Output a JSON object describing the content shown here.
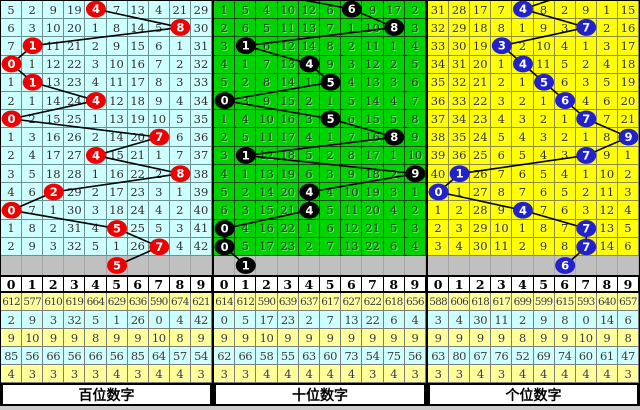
{
  "column_headers": [
    "0",
    "1",
    "2",
    "3",
    "4",
    "5",
    "6",
    "7",
    "8",
    "9"
  ],
  "stat_row_colors": [
    "#FFFF99",
    "#CCFFFF",
    "#FFFF99",
    "#CCFFFF",
    "#FFFF99"
  ],
  "chart_data": {
    "type": "line",
    "title": "3D digit trend chart (miss-count grids with drawn-digit trend lines)",
    "x_axis_digits": [
      "0",
      "1",
      "2",
      "3",
      "4",
      "5",
      "6",
      "7",
      "8",
      "9"
    ],
    "series": [
      {
        "name": "百位数字",
        "drawn_digits_top_to_bottom": [
          4,
          8,
          1,
          0,
          1,
          4,
          0,
          7,
          4,
          8,
          2,
          0,
          5,
          7
        ],
        "pending_digit": 5
      },
      {
        "name": "十位数字",
        "drawn_digits_top_to_bottom": [
          6,
          8,
          1,
          4,
          5,
          0,
          5,
          8,
          1,
          9,
          4,
          4,
          0,
          0
        ],
        "pending_digit": 1
      },
      {
        "name": "个位数字",
        "drawn_digits_top_to_bottom": [
          4,
          7,
          3,
          4,
          5,
          6,
          7,
          9,
          7,
          1,
          0,
          4,
          7,
          7
        ],
        "pending_digit": 6
      }
    ]
  },
  "panels": [
    {
      "id": "hundreds",
      "footer_label": "百位数字",
      "bg_color": "#CCFFFF",
      "grid_line_color": "#6f9090",
      "ball_color": "#EE0000",
      "rows": [
        [
          "5",
          "2",
          "9",
          "19",
          "4",
          "7",
          "13",
          "4",
          "21",
          "29"
        ],
        [
          "6",
          "3",
          "10",
          "20",
          "1",
          "8",
          "14",
          "5",
          "8",
          "30"
        ],
        [
          "7",
          "1",
          "11",
          "21",
          "2",
          "9",
          "15",
          "6",
          "1",
          "31"
        ],
        [
          "0",
          "1",
          "12",
          "22",
          "3",
          "10",
          "16",
          "7",
          "2",
          "32"
        ],
        [
          "1",
          "1",
          "13",
          "23",
          "4",
          "11",
          "17",
          "8",
          "3",
          "33"
        ],
        [
          "2",
          "1",
          "14",
          "24",
          "4",
          "12",
          "18",
          "9",
          "4",
          "34"
        ],
        [
          "0",
          "2",
          "15",
          "25",
          "1",
          "13",
          "19",
          "10",
          "5",
          "35"
        ],
        [
          "1",
          "3",
          "16",
          "26",
          "2",
          "14",
          "20",
          "7",
          "6",
          "36"
        ],
        [
          "2",
          "4",
          "17",
          "27",
          "4",
          "15",
          "21",
          "1",
          "7",
          "37"
        ],
        [
          "3",
          "5",
          "18",
          "28",
          "1",
          "16",
          "22",
          "2",
          "8",
          "38"
        ],
        [
          "4",
          "6",
          "2",
          "29",
          "2",
          "17",
          "23",
          "3",
          "1",
          "39"
        ],
        [
          "0",
          "7",
          "1",
          "30",
          "3",
          "18",
          "24",
          "4",
          "2",
          "40"
        ],
        [
          "1",
          "8",
          "2",
          "31",
          "4",
          "5",
          "25",
          "5",
          "3",
          "41"
        ],
        [
          "2",
          "9",
          "3",
          "32",
          "5",
          "1",
          "26",
          "7",
          "4",
          "42"
        ]
      ],
      "balls": [
        [
          0,
          4
        ],
        [
          1,
          8
        ],
        [
          2,
          1
        ],
        [
          3,
          0
        ],
        [
          4,
          1
        ],
        [
          5,
          4
        ],
        [
          6,
          0
        ],
        [
          7,
          7
        ],
        [
          8,
          4
        ],
        [
          9,
          8
        ],
        [
          10,
          2
        ],
        [
          11,
          0
        ],
        [
          12,
          5
        ],
        [
          13,
          7
        ]
      ],
      "next_ball": {
        "col": 5,
        "label": "5"
      },
      "lead_line": null,
      "stats": [
        [
          "612",
          "577",
          "610",
          "619",
          "664",
          "629",
          "636",
          "590",
          "674",
          "621"
        ],
        [
          "2",
          "9",
          "3",
          "32",
          "5",
          "1",
          "26",
          "0",
          "4",
          "42"
        ],
        [
          "9",
          "10",
          "9",
          "9",
          "8",
          "9",
          "9",
          "10",
          "8",
          "9"
        ],
        [
          "85",
          "56",
          "66",
          "56",
          "66",
          "56",
          "85",
          "64",
          "57",
          "54"
        ],
        [
          "4",
          "3",
          "3",
          "3",
          "3",
          "4",
          "3",
          "4",
          "4",
          "3"
        ]
      ]
    },
    {
      "id": "tens",
      "footer_label": "十位数字",
      "bg_color": "#00D400",
      "grid_line_color": "#0a4d0a",
      "ball_color": "#000000",
      "rows": [
        [
          "1",
          "5",
          "4",
          "10",
          "12",
          "6",
          "6",
          "9",
          "17",
          "2"
        ],
        [
          "2",
          "6",
          "5",
          "11",
          "13",
          "7",
          "1",
          "10",
          "8",
          "3"
        ],
        [
          "3",
          "1",
          "6",
          "12",
          "14",
          "8",
          "2",
          "11",
          "1",
          "4"
        ],
        [
          "4",
          "1",
          "7",
          "13",
          "4",
          "9",
          "3",
          "12",
          "2",
          "5"
        ],
        [
          "5",
          "2",
          "8",
          "14",
          "1",
          "5",
          "4",
          "13",
          "3",
          "6"
        ],
        [
          "0",
          "3",
          "9",
          "15",
          "2",
          "1",
          "5",
          "14",
          "4",
          "7"
        ],
        [
          "1",
          "4",
          "10",
          "16",
          "3",
          "5",
          "6",
          "15",
          "5",
          "8"
        ],
        [
          "2",
          "5",
          "11",
          "17",
          "4",
          "1",
          "7",
          "16",
          "8",
          "9"
        ],
        [
          "3",
          "1",
          "12",
          "18",
          "5",
          "2",
          "8",
          "17",
          "1",
          "10"
        ],
        [
          "4",
          "1",
          "13",
          "19",
          "6",
          "3",
          "9",
          "18",
          "2",
          "9"
        ],
        [
          "5",
          "2",
          "14",
          "20",
          "4",
          "4",
          "10",
          "19",
          "3",
          "1"
        ],
        [
          "6",
          "3",
          "15",
          "21",
          "4",
          "5",
          "11",
          "20",
          "4",
          "2"
        ],
        [
          "0",
          "4",
          "16",
          "22",
          "1",
          "6",
          "12",
          "21",
          "5",
          "3"
        ],
        [
          "0",
          "5",
          "17",
          "23",
          "2",
          "7",
          "13",
          "22",
          "6",
          "4"
        ]
      ],
      "balls": [
        [
          0,
          6
        ],
        [
          1,
          8
        ],
        [
          2,
          1
        ],
        [
          3,
          4
        ],
        [
          4,
          5
        ],
        [
          5,
          0
        ],
        [
          6,
          5
        ],
        [
          7,
          8
        ],
        [
          8,
          1
        ],
        [
          9,
          9
        ],
        [
          10,
          4
        ],
        [
          11,
          4
        ],
        [
          12,
          0
        ],
        [
          13,
          0
        ]
      ],
      "next_ball": {
        "col": 1,
        "label": "1"
      },
      "lead_line": {
        "edge_col": 4.2
      },
      "stats": [
        [
          "614",
          "612",
          "590",
          "639",
          "637",
          "617",
          "627",
          "622",
          "618",
          "656"
        ],
        [
          "0",
          "5",
          "17",
          "23",
          "2",
          "7",
          "13",
          "22",
          "6",
          "4"
        ],
        [
          "9",
          "9",
          "10",
          "9",
          "9",
          "9",
          "9",
          "9",
          "9",
          "9"
        ],
        [
          "62",
          "66",
          "58",
          "55",
          "63",
          "60",
          "73",
          "54",
          "75",
          "56"
        ],
        [
          "3",
          "3",
          "4",
          "4",
          "4",
          "4",
          "4",
          "3",
          "4",
          "3"
        ]
      ]
    },
    {
      "id": "units",
      "footer_label": "个位数字",
      "bg_color": "#FFFF00",
      "grid_line_color": "#8b8b52",
      "ball_color": "#2222CC",
      "rows": [
        [
          "31",
          "28",
          "17",
          "7",
          "4",
          "8",
          "2",
          "9",
          "1",
          "15"
        ],
        [
          "32",
          "29",
          "18",
          "8",
          "1",
          "9",
          "3",
          "7",
          "2",
          "16"
        ],
        [
          "33",
          "30",
          "19",
          "3",
          "2",
          "10",
          "4",
          "1",
          "3",
          "17"
        ],
        [
          "34",
          "31",
          "20",
          "1",
          "4",
          "11",
          "5",
          "2",
          "4",
          "18"
        ],
        [
          "35",
          "32",
          "21",
          "2",
          "1",
          "5",
          "6",
          "3",
          "5",
          "19"
        ],
        [
          "36",
          "33",
          "22",
          "3",
          "2",
          "1",
          "6",
          "4",
          "6",
          "20"
        ],
        [
          "37",
          "34",
          "23",
          "4",
          "3",
          "2",
          "1",
          "7",
          "7",
          "21"
        ],
        [
          "38",
          "35",
          "24",
          "5",
          "4",
          "3",
          "2",
          "1",
          "8",
          "9"
        ],
        [
          "39",
          "36",
          "25",
          "6",
          "5",
          "4",
          "3",
          "7",
          "9",
          "1"
        ],
        [
          "40",
          "1",
          "26",
          "7",
          "6",
          "5",
          "4",
          "1",
          "10",
          "2"
        ],
        [
          "0",
          "1",
          "27",
          "8",
          "7",
          "6",
          "5",
          "2",
          "11",
          "3"
        ],
        [
          "1",
          "2",
          "28",
          "9",
          "4",
          "7",
          "6",
          "3",
          "12",
          "4"
        ],
        [
          "2",
          "3",
          "29",
          "10",
          "1",
          "8",
          "7",
          "7",
          "13",
          "5"
        ],
        [
          "3",
          "4",
          "30",
          "11",
          "2",
          "9",
          "8",
          "7",
          "14",
          "6"
        ]
      ],
      "balls": [
        [
          0,
          4
        ],
        [
          1,
          7
        ],
        [
          2,
          3
        ],
        [
          3,
          4
        ],
        [
          4,
          5
        ],
        [
          5,
          6
        ],
        [
          6,
          7
        ],
        [
          7,
          9
        ],
        [
          8,
          7
        ],
        [
          9,
          1
        ],
        [
          10,
          0
        ],
        [
          11,
          4
        ],
        [
          12,
          7
        ],
        [
          13,
          7
        ]
      ],
      "next_ball": {
        "col": 6,
        "label": "6"
      },
      "lead_line": {
        "edge_col": 5.8,
        "up_from_first": true
      },
      "stats": [
        [
          "588",
          "606",
          "618",
          "617",
          "699",
          "599",
          "615",
          "593",
          "640",
          "657"
        ],
        [
          "3",
          "4",
          "30",
          "11",
          "2",
          "9",
          "8",
          "0",
          "14",
          "6"
        ],
        [
          "9",
          "9",
          "9",
          "9",
          "8",
          "9",
          "9",
          "10",
          "9",
          "8"
        ],
        [
          "63",
          "80",
          "67",
          "76",
          "52",
          "69",
          "74",
          "60",
          "61",
          "47"
        ],
        [
          "3",
          "3",
          "4",
          "3",
          "4",
          "4",
          "4",
          "4",
          "4",
          "3"
        ]
      ]
    }
  ]
}
